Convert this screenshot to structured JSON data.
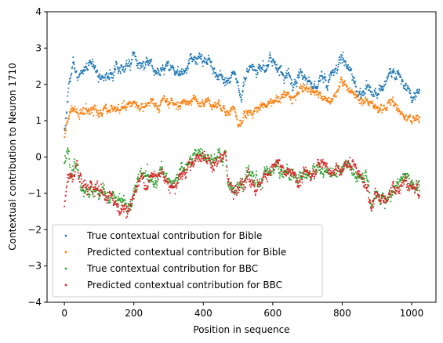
{
  "chart_data": {
    "type": "scatter",
    "xlabel": "Position in sequence",
    "ylabel": "Contextual contribution to Neuron 1710",
    "xlim": [
      -50,
      1070
    ],
    "ylim": [
      -4,
      4
    ],
    "xticks": [
      0,
      200,
      400,
      600,
      800,
      1000
    ],
    "yticks": [
      -4,
      -3,
      -2,
      -1,
      0,
      1,
      2,
      3,
      4
    ],
    "grid": false,
    "legend_position": "lower-left",
    "x_range": [
      0,
      1023
    ],
    "series": [
      {
        "name": "True contextual contribution for Bible",
        "color": "#1f77b4",
        "noise": 0.09,
        "anchors": [
          [
            0,
            0.7
          ],
          [
            5,
            1.2
          ],
          [
            15,
            2.2
          ],
          [
            25,
            2.6
          ],
          [
            40,
            2.2
          ],
          [
            60,
            2.4
          ],
          [
            80,
            2.5
          ],
          [
            100,
            2.35
          ],
          [
            120,
            2.2
          ],
          [
            150,
            2.4
          ],
          [
            180,
            2.55
          ],
          [
            200,
            2.8
          ],
          [
            220,
            2.5
          ],
          [
            240,
            2.65
          ],
          [
            270,
            2.35
          ],
          [
            300,
            2.5
          ],
          [
            330,
            2.3
          ],
          [
            360,
            2.55
          ],
          [
            390,
            2.7
          ],
          [
            420,
            2.5
          ],
          [
            440,
            2.3
          ],
          [
            460,
            2.0
          ],
          [
            480,
            2.2
          ],
          [
            500,
            1.9
          ],
          [
            510,
            1.55
          ],
          [
            520,
            2.2
          ],
          [
            540,
            2.35
          ],
          [
            560,
            2.3
          ],
          [
            580,
            2.45
          ],
          [
            600,
            2.7
          ],
          [
            620,
            2.4
          ],
          [
            640,
            2.3
          ],
          [
            660,
            2.0
          ],
          [
            680,
            2.35
          ],
          [
            700,
            2.1
          ],
          [
            720,
            2.0
          ],
          [
            740,
            2.25
          ],
          [
            760,
            2.1
          ],
          [
            780,
            2.4
          ],
          [
            800,
            2.75
          ],
          [
            820,
            2.5
          ],
          [
            840,
            1.9
          ],
          [
            860,
            1.8
          ],
          [
            880,
            2.0
          ],
          [
            900,
            1.7
          ],
          [
            920,
            1.9
          ],
          [
            940,
            2.45
          ],
          [
            960,
            2.3
          ],
          [
            980,
            2.1
          ],
          [
            1000,
            1.6
          ],
          [
            1023,
            1.75
          ]
        ]
      },
      {
        "name": "Predicted contextual contribution for Bible",
        "color": "#ff7f0e",
        "noise": 0.07,
        "anchors": [
          [
            0,
            0.6
          ],
          [
            8,
            1.0
          ],
          [
            20,
            1.3
          ],
          [
            40,
            1.2
          ],
          [
            60,
            1.25
          ],
          [
            80,
            1.3
          ],
          [
            100,
            1.2
          ],
          [
            130,
            1.3
          ],
          [
            160,
            1.35
          ],
          [
            200,
            1.5
          ],
          [
            220,
            1.4
          ],
          [
            250,
            1.45
          ],
          [
            280,
            1.4
          ],
          [
            300,
            1.5
          ],
          [
            330,
            1.45
          ],
          [
            360,
            1.6
          ],
          [
            390,
            1.5
          ],
          [
            420,
            1.55
          ],
          [
            450,
            1.4
          ],
          [
            470,
            1.3
          ],
          [
            490,
            1.3
          ],
          [
            500,
            0.85
          ],
          [
            520,
            1.2
          ],
          [
            540,
            1.3
          ],
          [
            560,
            1.35
          ],
          [
            580,
            1.45
          ],
          [
            600,
            1.55
          ],
          [
            630,
            1.65
          ],
          [
            660,
            1.75
          ],
          [
            690,
            1.8
          ],
          [
            720,
            1.75
          ],
          [
            750,
            1.65
          ],
          [
            780,
            1.7
          ],
          [
            800,
            2.0
          ],
          [
            830,
            1.7
          ],
          [
            850,
            1.5
          ],
          [
            880,
            1.4
          ],
          [
            900,
            1.3
          ],
          [
            920,
            1.35
          ],
          [
            940,
            1.5
          ],
          [
            960,
            1.4
          ],
          [
            990,
            1.2
          ],
          [
            1000,
            1.0
          ],
          [
            1023,
            1.15
          ]
        ]
      },
      {
        "name": "True contextual contribution for BBC",
        "color": "#2ca02c",
        "noise": 0.1,
        "anchors": [
          [
            0,
            -0.3
          ],
          [
            10,
            0.1
          ],
          [
            20,
            -0.5
          ],
          [
            35,
            -0.3
          ],
          [
            50,
            -0.85
          ],
          [
            70,
            -1.0
          ],
          [
            100,
            -0.9
          ],
          [
            130,
            -1.1
          ],
          [
            160,
            -1.3
          ],
          [
            185,
            -1.4
          ],
          [
            200,
            -0.9
          ],
          [
            220,
            -0.6
          ],
          [
            240,
            -0.5
          ],
          [
            260,
            -0.6
          ],
          [
            280,
            -0.45
          ],
          [
            300,
            -0.6
          ],
          [
            320,
            -0.7
          ],
          [
            340,
            -0.35
          ],
          [
            370,
            -0.05
          ],
          [
            390,
            0.15
          ],
          [
            410,
            -0.1
          ],
          [
            430,
            -0.15
          ],
          [
            450,
            -0.05
          ],
          [
            465,
            0.1
          ],
          [
            470,
            -0.6
          ],
          [
            490,
            -1.0
          ],
          [
            510,
            -0.75
          ],
          [
            530,
            -0.55
          ],
          [
            550,
            -0.75
          ],
          [
            570,
            -0.6
          ],
          [
            590,
            -0.3
          ],
          [
            610,
            -0.15
          ],
          [
            630,
            -0.35
          ],
          [
            650,
            -0.5
          ],
          [
            670,
            -0.6
          ],
          [
            690,
            -0.4
          ],
          [
            710,
            -0.5
          ],
          [
            730,
            -0.3
          ],
          [
            760,
            -0.4
          ],
          [
            790,
            -0.3
          ],
          [
            810,
            -0.2
          ],
          [
            830,
            -0.25
          ],
          [
            850,
            -0.55
          ],
          [
            870,
            -0.7
          ],
          [
            885,
            -1.3
          ],
          [
            900,
            -1.0
          ],
          [
            930,
            -1.15
          ],
          [
            950,
            -0.8
          ],
          [
            970,
            -0.65
          ],
          [
            990,
            -0.6
          ],
          [
            1000,
            -0.75
          ],
          [
            1023,
            -0.85
          ]
        ]
      },
      {
        "name": "Predicted contextual contribution for BBC",
        "color": "#d62728",
        "noise": 0.1,
        "anchors": [
          [
            0,
            -1.3
          ],
          [
            10,
            -0.6
          ],
          [
            20,
            -0.5
          ],
          [
            35,
            -0.4
          ],
          [
            50,
            -0.85
          ],
          [
            70,
            -1.0
          ],
          [
            100,
            -0.95
          ],
          [
            130,
            -1.15
          ],
          [
            160,
            -1.35
          ],
          [
            185,
            -1.5
          ],
          [
            200,
            -1.0
          ],
          [
            220,
            -0.65
          ],
          [
            240,
            -0.55
          ],
          [
            260,
            -0.6
          ],
          [
            280,
            -0.45
          ],
          [
            300,
            -0.65
          ],
          [
            320,
            -0.75
          ],
          [
            340,
            -0.4
          ],
          [
            370,
            -0.1
          ],
          [
            390,
            0.1
          ],
          [
            410,
            -0.15
          ],
          [
            430,
            -0.2
          ],
          [
            450,
            -0.1
          ],
          [
            465,
            0.05
          ],
          [
            470,
            -0.65
          ],
          [
            490,
            -1.05
          ],
          [
            510,
            -0.8
          ],
          [
            530,
            -0.6
          ],
          [
            550,
            -0.8
          ],
          [
            570,
            -0.65
          ],
          [
            590,
            -0.35
          ],
          [
            610,
            -0.2
          ],
          [
            630,
            -0.4
          ],
          [
            650,
            -0.55
          ],
          [
            670,
            -0.65
          ],
          [
            690,
            -0.45
          ],
          [
            710,
            -0.55
          ],
          [
            730,
            -0.35
          ],
          [
            760,
            -0.45
          ],
          [
            790,
            -0.35
          ],
          [
            810,
            -0.25
          ],
          [
            830,
            -0.3
          ],
          [
            850,
            -0.6
          ],
          [
            870,
            -0.75
          ],
          [
            885,
            -1.4
          ],
          [
            900,
            -1.05
          ],
          [
            930,
            -1.2
          ],
          [
            950,
            -0.85
          ],
          [
            970,
            -0.7
          ],
          [
            990,
            -0.65
          ],
          [
            1000,
            -0.8
          ],
          [
            1023,
            -0.9
          ]
        ]
      }
    ]
  }
}
